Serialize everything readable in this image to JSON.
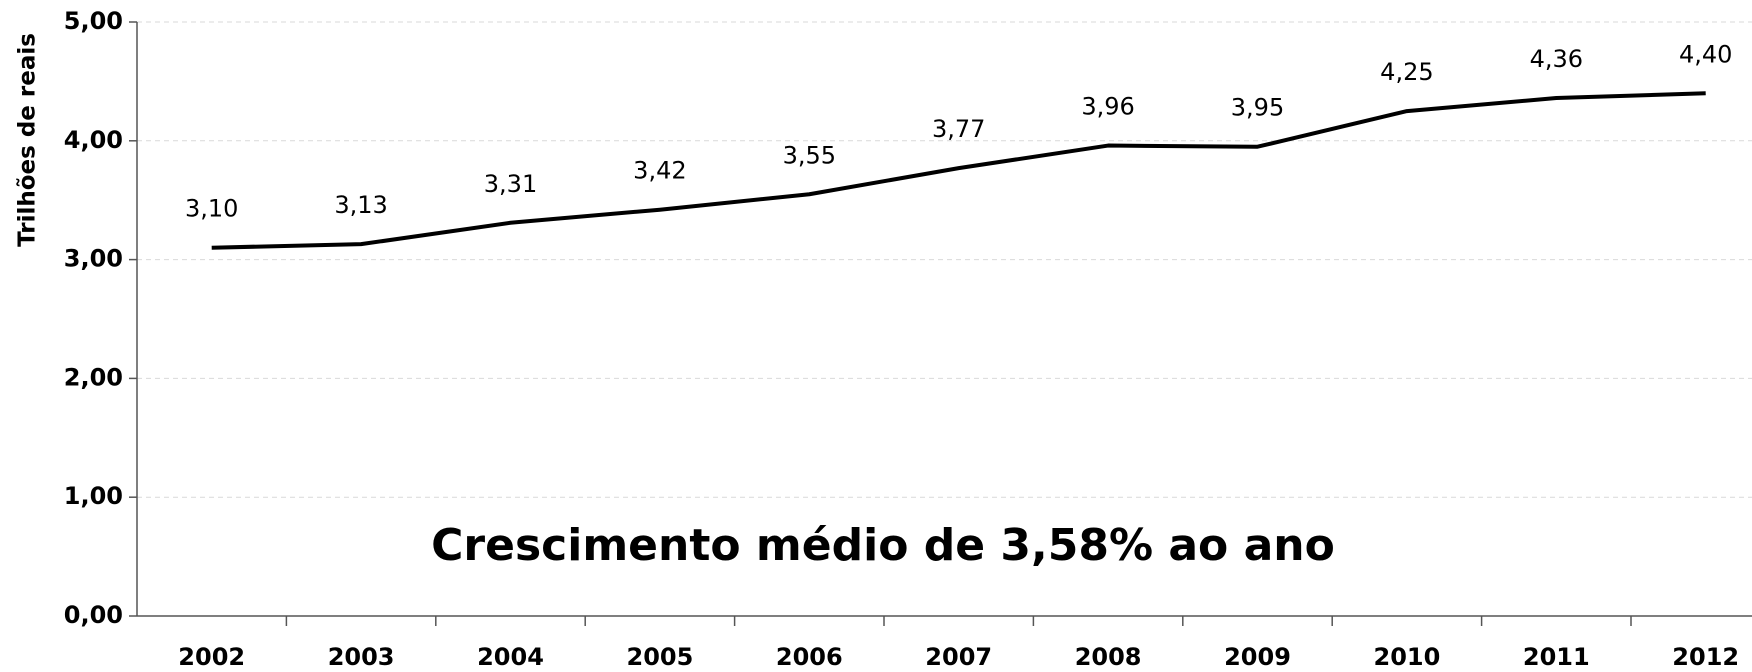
{
  "chart_data": {
    "type": "line",
    "y_label": "Trilhões de reais",
    "annotation": "Crescimento médio de 3,58% ao ano",
    "categories": [
      "2002",
      "2003",
      "2004",
      "2005",
      "2006",
      "2007",
      "2008",
      "2009",
      "2010",
      "2011",
      "2012"
    ],
    "values": [
      3.1,
      3.13,
      3.31,
      3.42,
      3.55,
      3.77,
      3.96,
      3.95,
      4.25,
      4.36,
      4.4
    ],
    "value_labels": [
      "3,10",
      "3,13",
      "3,31",
      "3,42",
      "3,55",
      "3,77",
      "3,96",
      "3,95",
      "4,25",
      "4,36",
      "4,40"
    ],
    "color": "#000000",
    "ylim": [
      0,
      5
    ],
    "yticks": [
      {
        "value": 0,
        "label": "0,00"
      },
      {
        "value": 1,
        "label": "1,00"
      },
      {
        "value": 2,
        "label": "2,00"
      },
      {
        "value": 3,
        "label": "3,00"
      },
      {
        "value": 4,
        "label": "4,00"
      },
      {
        "value": 5,
        "label": "5,00"
      }
    ],
    "grid": true
  }
}
